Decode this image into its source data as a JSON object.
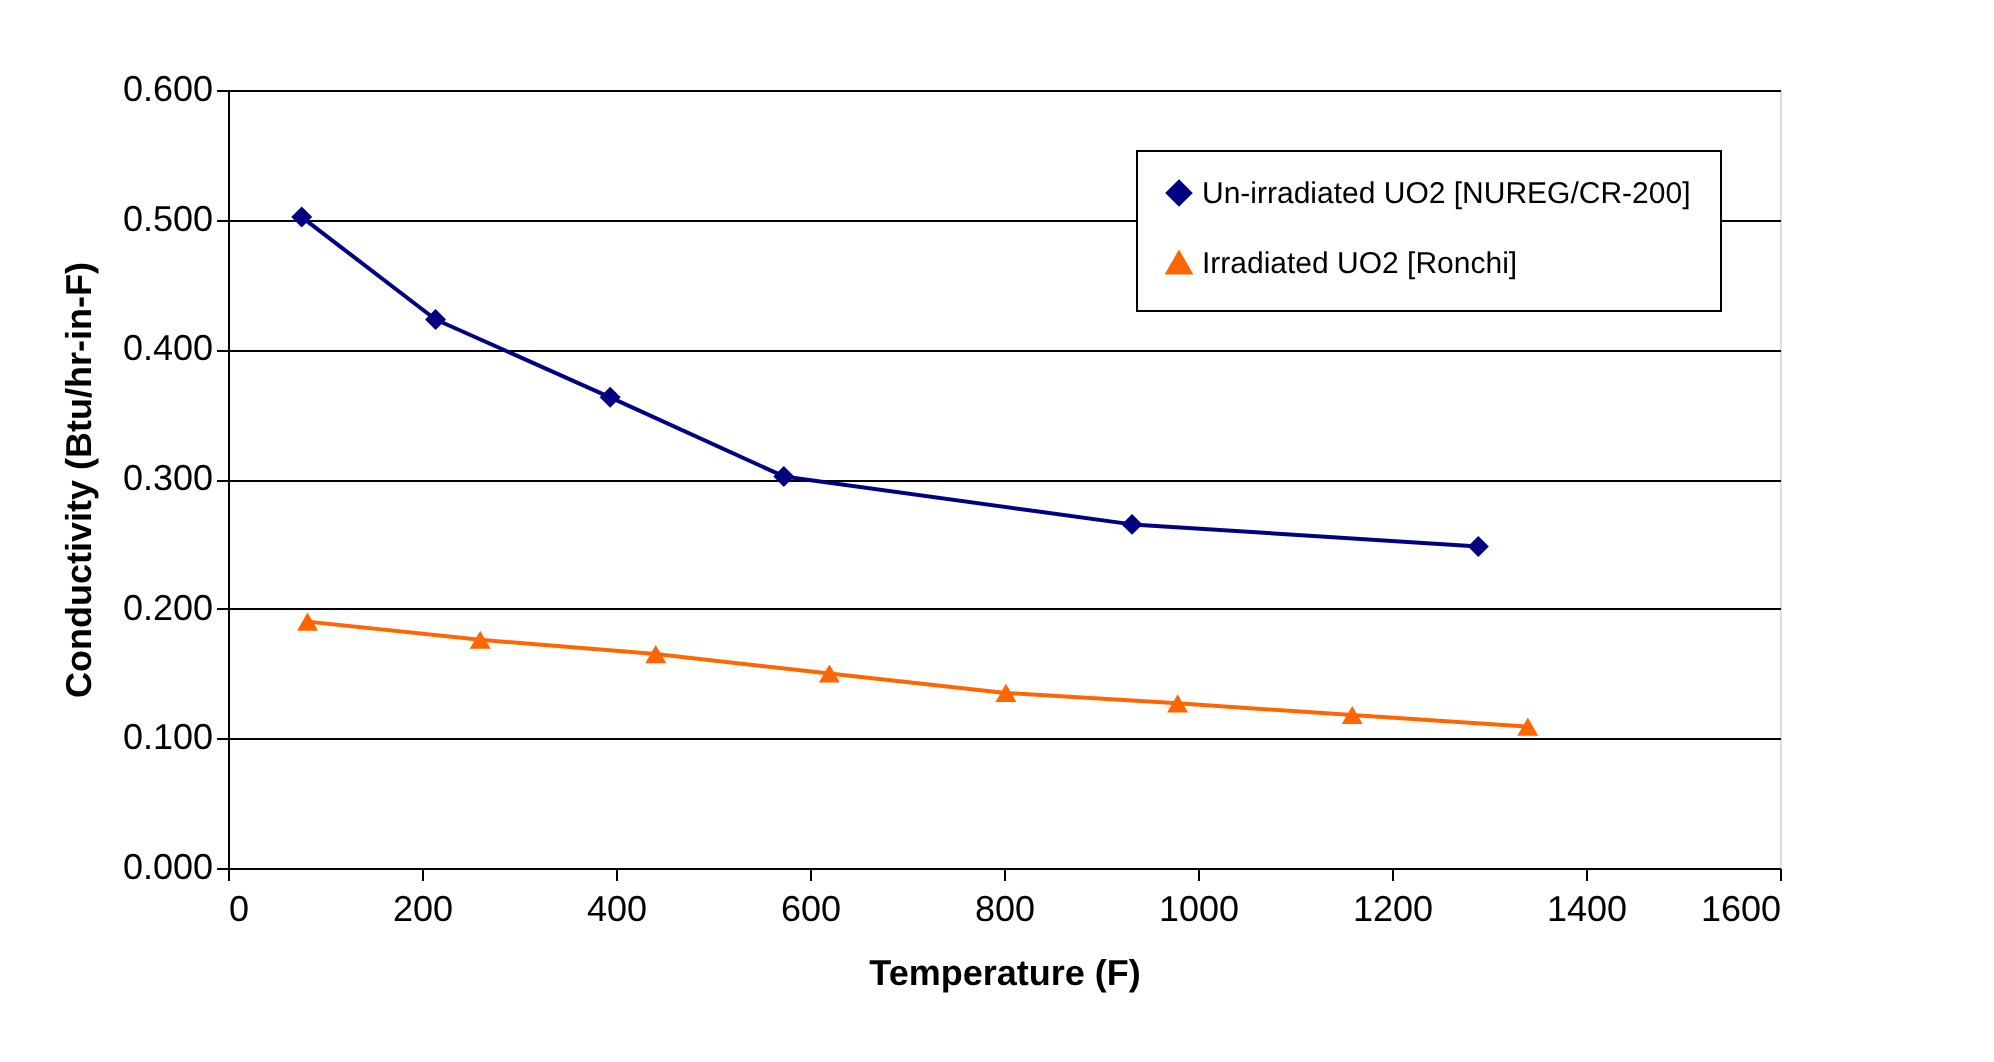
{
  "chart_data": {
    "type": "line",
    "xlabel": "Temperature (F)",
    "ylabel": "Conductivity (Btu/hr-in-F)",
    "xlim": [
      0,
      1600
    ],
    "xticks": [
      0,
      200,
      400,
      600,
      800,
      1000,
      1200,
      1400,
      1600
    ],
    "ylim": [
      0,
      0.6
    ],
    "yticks": [
      {
        "value": 0,
        "label": "0.000"
      },
      {
        "value": 0.1,
        "label": "0.100"
      },
      {
        "value": 0.2,
        "label": "0.200"
      },
      {
        "value": 0.3,
        "label": "0.300"
      },
      {
        "value": 0.4,
        "label": "0.400"
      },
      {
        "value": 0.5,
        "label": "0.500"
      },
      {
        "value": 0.6,
        "label": "0.600"
      }
    ],
    "grid": "y",
    "legend": "top right",
    "line_style": "solid",
    "series": [
      {
        "name": "Un-irradiated UO2 [NUREG/CR-200]",
        "color": "#000080",
        "marker": "diamond",
        "x": [
          76,
          214,
          394,
          573,
          932,
          1289
        ],
        "values": [
          0.502,
          0.423,
          0.363,
          0.302,
          0.265,
          0.248
        ]
      },
      {
        "name": "Irradiated UO2 [Ronchi]",
        "color": "#ff6600",
        "marker": "triangle",
        "x": [
          82,
          260,
          441,
          620,
          802,
          979,
          1159,
          1340
        ],
        "values": [
          0.19,
          0.176,
          0.165,
          0.15,
          0.135,
          0.127,
          0.118,
          0.109
        ]
      }
    ]
  }
}
